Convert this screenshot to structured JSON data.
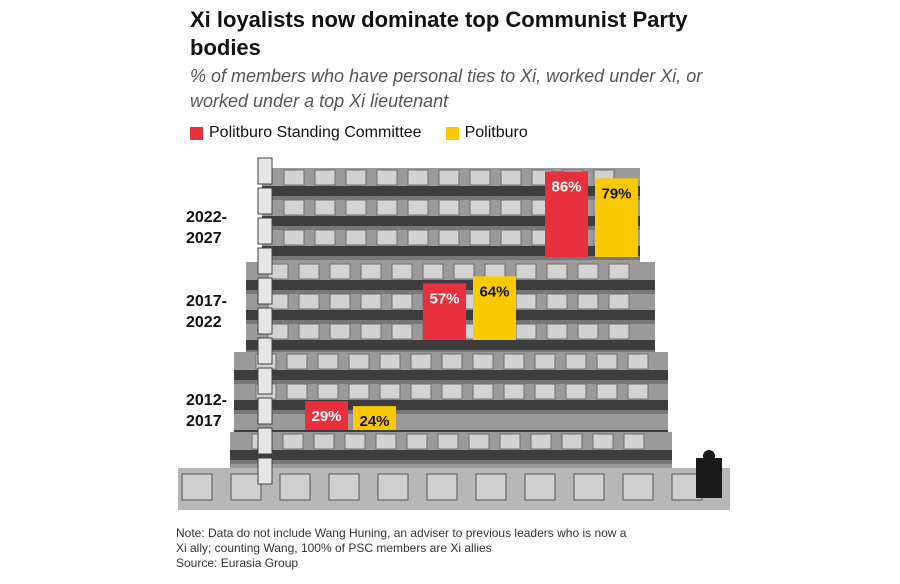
{
  "title": "Xi loyalists now dominate top Communist Party bodies",
  "subtitle": "% of members who have personal ties to Xi, worked under Xi, or worked under a top Xi lieutenant",
  "legend": [
    {
      "name": "Politburo Standing Committee",
      "color": "#e8303f"
    },
    {
      "name": "Politburo",
      "color": "#fbc900"
    }
  ],
  "chart_data": {
    "type": "bar",
    "categories": [
      "2012-2017",
      "2017-2022",
      "2022-2027"
    ],
    "series": [
      {
        "name": "Politburo Standing Committee",
        "values": [
          29,
          57,
          86
        ],
        "labels": [
          "29%",
          "57%",
          "86%"
        ],
        "color": "#e8303f",
        "label_color": "#ffffff"
      },
      {
        "name": "Politburo",
        "values": [
          24,
          64,
          79
        ],
        "labels": [
          "24%",
          "64%",
          "79%"
        ],
        "color": "#fbc900",
        "label_color": "#111111"
      }
    ],
    "category_label_lines": [
      [
        "2012-",
        "2017"
      ],
      [
        "2017-",
        "2022"
      ],
      [
        "2022-",
        "2027"
      ]
    ]
  },
  "note": {
    "line1": "Note: Data do not include Wang Huning, an adviser to previous leaders who is now a",
    "line2": "Xi ally; counting Wang, 100% of PSC members are Xi allies",
    "source": "Source: Eurasia Group"
  }
}
